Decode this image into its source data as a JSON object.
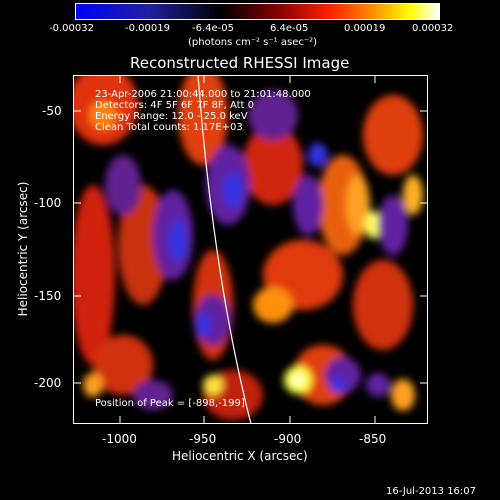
{
  "colorbar": {
    "ticks": [
      "-0.00032",
      "-0.00019",
      "-6.4e-05",
      "6.4e-05",
      "0.00019",
      "0.00032"
    ],
    "unit": "(photons cm⁻² s⁻¹ asec⁻²)",
    "colors": [
      "#0000ff",
      "#000000",
      "#ff0000",
      "#ffff00",
      "#ffffff"
    ]
  },
  "title": "Reconstructed RHESSI Image",
  "annotation": {
    "time_range": "23-Apr-2006 21:00:44.000 to 21:01:48.000",
    "detectors": "Detectors: 4F 5F 6F 7F 8F, Att 0",
    "energy": "Energy Range: 12.0 - 25.0 keV",
    "clean": "Clean    Total counts: 1.17E+03",
    "peak": "Position of Peak = [-898,-199]"
  },
  "axes": {
    "xlabel": "Heliocentric X (arcsec)",
    "ylabel": "Heliocentric Y (arcsec)",
    "xticks": [
      "-1000",
      "-950",
      "-900",
      "-850"
    ],
    "yticks": [
      "-50",
      "-100",
      "-150",
      "-200"
    ]
  },
  "timestamp": "16-Jul-2013 16:07"
}
